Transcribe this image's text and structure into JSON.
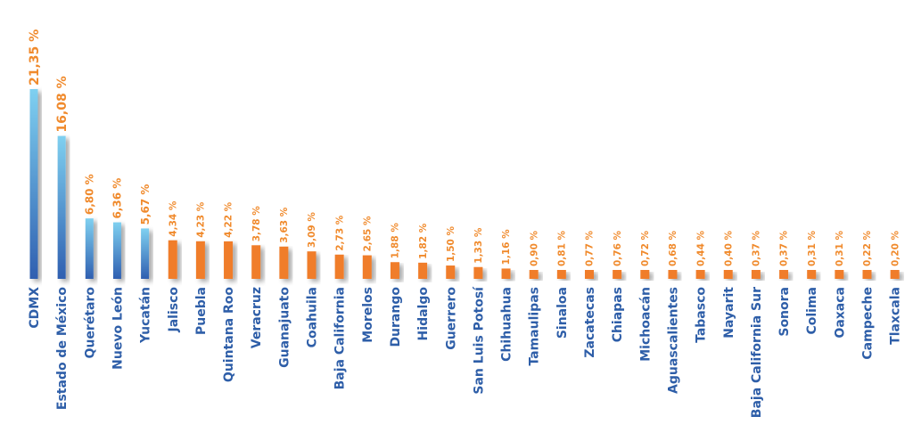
{
  "chart_data": {
    "type": "bar",
    "categories": [
      "CDMX",
      "Estado de México",
      "Querétaro",
      "Nuevo León",
      "Yucatán",
      "Jalisco",
      "Puebla",
      "Quintana Roo",
      "Veracruz",
      "Guanajuato",
      "Coahuila",
      "Baja California",
      "Morelos",
      "Durango",
      "Hidalgo",
      "Guerrero",
      "San Luis Potosí",
      "Chihuahua",
      "Tamaulipas",
      "Sinaloa",
      "Zacatecas",
      "Chiapas",
      "Michoacán",
      "Aguascalientes",
      "Tabasco",
      "Nayarit",
      "Baja California Sur",
      "Sonora",
      "Colima",
      "Oaxaca",
      "Campeche",
      "Tlaxcala"
    ],
    "values": [
      21.35,
      16.08,
      6.8,
      6.36,
      5.67,
      4.34,
      4.23,
      4.22,
      3.78,
      3.63,
      3.09,
      2.73,
      2.65,
      1.88,
      1.82,
      1.5,
      1.33,
      1.16,
      0.9,
      0.81,
      0.77,
      0.76,
      0.72,
      0.68,
      0.44,
      0.4,
      0.37,
      0.37,
      0.31,
      0.31,
      0.22,
      0.2
    ],
    "data_labels": [
      "21,35 %",
      "16,08 %",
      "6,80 %",
      "6,36 %",
      "5,67 %",
      "4,34 %",
      "4,23 %",
      "4,22 %",
      "3,78 %",
      "3,63 %",
      "3,09 %",
      "2,73 %",
      "2,65 %",
      "1,88 %",
      "1,82 %",
      "1,50 %",
      "1,33 %",
      "1,16 %",
      "0,90 %",
      "0,81 %",
      "0,77 %",
      "0,76 %",
      "0,72 %",
      "0,68 %",
      "0,44 %",
      "0,40 %",
      "0,37 %",
      "0,37 %",
      "0,31 %",
      "0,31 %",
      "0,22 %",
      "0,20 %"
    ],
    "highlight_count": 5,
    "colors": {
      "highlight_top": "#7fd0f0",
      "highlight_bottom": "#2f5fb0",
      "standard": "#f07d2a",
      "value_label": "#f08a2c",
      "category_label": "#2e5ea8"
    },
    "title": "",
    "xlabel": "",
    "ylabel": "",
    "ylim": [
      0,
      21.35
    ],
    "grid": false,
    "legend": false
  }
}
